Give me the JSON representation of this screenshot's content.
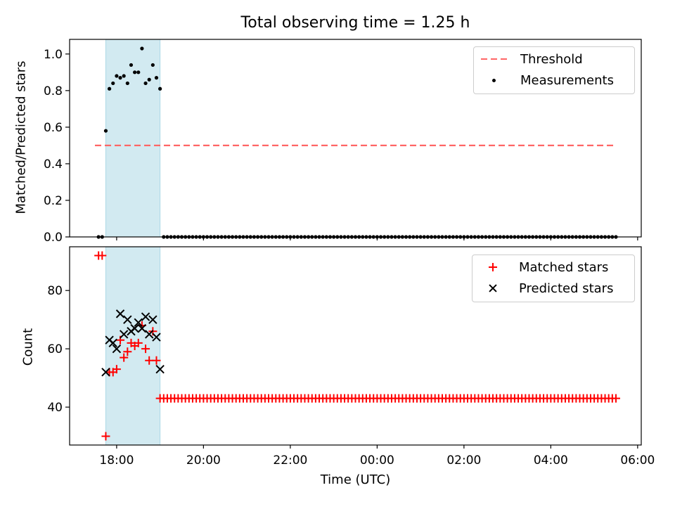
{
  "figure": {
    "title": "Total observing time = 1.25 h"
  },
  "chart_data": [
    {
      "type": "scatter",
      "ylabel": "Matched/Predicted stars",
      "xlabel": "",
      "ylim": [
        0.0,
        1.08
      ],
      "yticks": [
        0.0,
        0.2,
        0.4,
        0.6,
        0.8,
        1.0
      ],
      "ytick_labels": [
        "0.0",
        "0.2",
        "0.4",
        "0.6",
        "0.8",
        "1.0"
      ],
      "grid": false,
      "legend_location": "upper right",
      "shaded_region": {
        "start": "17:45",
        "end": "19:00",
        "color": "#add8e6"
      },
      "threshold": {
        "name": "Threshold",
        "value": 0.5,
        "x_start": "17:30",
        "x_end": "05:30",
        "style": "dashed",
        "color": "#ff6666"
      },
      "series": [
        {
          "name": "Measurements",
          "marker": "dot",
          "color": "#000000",
          "points_in_window": [
            [
              "17:45",
              0.58
            ],
            [
              "17:50",
              0.81
            ],
            [
              "17:55",
              0.84
            ],
            [
              "18:00",
              0.88
            ],
            [
              "18:05",
              0.87
            ],
            [
              "18:10",
              0.88
            ],
            [
              "18:15",
              0.84
            ],
            [
              "18:20",
              0.94
            ],
            [
              "18:25",
              0.9
            ],
            [
              "18:30",
              0.9
            ],
            [
              "18:35",
              1.03
            ],
            [
              "18:40",
              0.84
            ],
            [
              "18:45",
              0.86
            ],
            [
              "18:50",
              0.94
            ],
            [
              "18:55",
              0.87
            ],
            [
              "19:00",
              0.81
            ]
          ],
          "baseline_value": 0.0,
          "baseline_ranges": [
            [
              "17:35",
              "17:40"
            ],
            [
              "19:05",
              "05:30"
            ]
          ],
          "baseline_step_minutes": 5
        }
      ]
    },
    {
      "type": "scatter",
      "ylabel": "Count",
      "xlabel": "Time (UTC)",
      "ylim": [
        27,
        95
      ],
      "yticks": [
        40,
        60,
        80
      ],
      "ytick_labels": [
        "40",
        "60",
        "80"
      ],
      "xticks": [
        "18:00",
        "20:00",
        "22:00",
        "00:00",
        "02:00",
        "04:00",
        "06:00"
      ],
      "xlim": [
        "16:55",
        "06:05"
      ],
      "grid": false,
      "legend_location": "upper right",
      "shaded_region": {
        "start": "17:45",
        "end": "19:00",
        "color": "#add8e6"
      },
      "series": [
        {
          "name": "Matched stars",
          "marker": "plus",
          "color": "#ff0000",
          "points_in_window": [
            [
              "17:35",
              92
            ],
            [
              "17:40",
              92
            ],
            [
              "17:45",
              30
            ],
            [
              "17:50",
              52
            ],
            [
              "17:55",
              52
            ],
            [
              "18:00",
              53
            ],
            [
              "18:05",
              63
            ],
            [
              "18:10",
              57
            ],
            [
              "18:15",
              59
            ],
            [
              "18:20",
              62
            ],
            [
              "18:25",
              61
            ],
            [
              "18:30",
              62
            ],
            [
              "18:35",
              68
            ],
            [
              "18:40",
              60
            ],
            [
              "18:45",
              56
            ],
            [
              "18:50",
              66
            ],
            [
              "18:55",
              56
            ]
          ],
          "baseline_value": 43,
          "baseline_ranges": [
            [
              "19:00",
              "05:30"
            ]
          ],
          "baseline_step_minutes": 5
        },
        {
          "name": "Predicted stars",
          "marker": "x",
          "color": "#000000",
          "points_in_window": [
            [
              "17:45",
              52
            ],
            [
              "17:50",
              63
            ],
            [
              "17:55",
              62
            ],
            [
              "18:00",
              60
            ],
            [
              "18:05",
              72
            ],
            [
              "18:10",
              65
            ],
            [
              "18:15",
              70
            ],
            [
              "18:20",
              66
            ],
            [
              "18:25",
              67
            ],
            [
              "18:30",
              69
            ],
            [
              "18:35",
              67
            ],
            [
              "18:40",
              71
            ],
            [
              "18:45",
              65
            ],
            [
              "18:50",
              70
            ],
            [
              "18:55",
              64
            ],
            [
              "19:00",
              53
            ]
          ]
        }
      ]
    }
  ]
}
